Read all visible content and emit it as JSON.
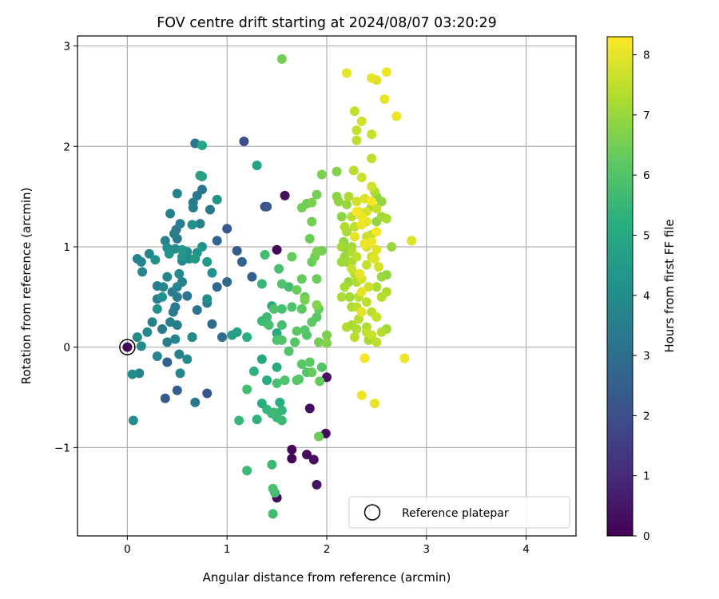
{
  "chart_data": {
    "type": "scatter",
    "title": "FOV centre drift starting at 2024/08/07 03:20:29",
    "xlabel": "Angular distance from reference (arcmin)",
    "ylabel": "Rotation from reference (arcmin)",
    "colorbar_label": "Hours from first FF file",
    "colormap": "viridis",
    "xlim": [
      -0.5,
      4.5
    ],
    "ylim": [
      -1.88,
      3.1
    ],
    "clim": [
      0,
      8.3
    ],
    "xticks": [
      0,
      1,
      2,
      3,
      4
    ],
    "xtick_labels": [
      "0",
      "1",
      "2",
      "3",
      "4"
    ],
    "yticks": [
      -1,
      0,
      1,
      2,
      3
    ],
    "ytick_labels": [
      "−1",
      "0",
      "1",
      "2",
      "3"
    ],
    "cticks": [
      0,
      1,
      2,
      3,
      4,
      5,
      6,
      7,
      8
    ],
    "ctick_labels": [
      "0",
      "1",
      "2",
      "3",
      "4",
      "5",
      "6",
      "7",
      "8"
    ],
    "grid": true,
    "legend": {
      "position": "lower-right",
      "label": "Reference platepar"
    },
    "reference_point": {
      "x": 0,
      "y": 0
    },
    "points": [
      [
        0,
        0,
        0.1
      ],
      [
        1.5,
        0.97,
        0.2
      ],
      [
        1.58,
        1.51,
        0.3
      ],
      [
        1.5,
        -1.5,
        0.2
      ],
      [
        1.65,
        -1.02,
        0.15
      ],
      [
        1.65,
        -1.11,
        0.1
      ],
      [
        1.8,
        -1.07,
        0.2
      ],
      [
        1.87,
        -1.12,
        0.3
      ],
      [
        1.9,
        -1.37,
        0.4
      ],
      [
        1.83,
        -0.61,
        0.3
      ],
      [
        1.99,
        -0.86,
        0.2
      ],
      [
        2.0,
        -0.3,
        0.3
      ],
      [
        1.38,
        1.4,
        1.9
      ],
      [
        1.17,
        2.05,
        2.0
      ],
      [
        0.8,
        -0.46,
        2.2
      ],
      [
        1.0,
        1.18,
        2.3
      ],
      [
        0.38,
        -0.51,
        2.3
      ],
      [
        0.5,
        -0.43,
        2.4
      ],
      [
        0.4,
        -0.15,
        2.5
      ],
      [
        1.1,
        0.96,
        2.4
      ],
      [
        1.15,
        0.85,
        2.6
      ],
      [
        1.25,
        0.7,
        2.5
      ],
      [
        0.9,
        0.6,
        2.8
      ],
      [
        0.85,
        0.23,
        2.9
      ],
      [
        0.95,
        0.1,
        3.0
      ],
      [
        1.4,
        1.4,
        2.2
      ],
      [
        0.9,
        1.06,
        2.7
      ],
      [
        1.0,
        0.65,
        2.8
      ],
      [
        0.68,
        2.03,
        3.2
      ],
      [
        0.68,
        -0.55,
        3.3
      ],
      [
        0.65,
        0.1,
        3.4
      ],
      [
        0.5,
        0.5,
        3.4
      ],
      [
        0.5,
        1.08,
        3.3
      ],
      [
        0.49,
        1.17,
        3.2
      ],
      [
        0.47,
        1.13,
        3.5
      ],
      [
        0.53,
        1.23,
        3.5
      ],
      [
        0.43,
        1.33,
        3.6
      ],
      [
        0.38,
        1.06,
        3.7
      ],
      [
        0.5,
        1.53,
        3.6
      ],
      [
        0.66,
        1.44,
        3.4
      ],
      [
        0.7,
        1.51,
        3.3
      ],
      [
        0.66,
        1.39,
        3.5
      ],
      [
        0.75,
        1.57,
        3.2
      ],
      [
        0.83,
        1.37,
        3.3
      ],
      [
        0.73,
        1.23,
        3.6
      ],
      [
        0.6,
        0.95,
        3.9
      ],
      [
        0.62,
        0.88,
        4.0
      ],
      [
        0.55,
        0.86,
        3.7
      ],
      [
        0.48,
        0.98,
        3.9
      ],
      [
        0.4,
        0.99,
        4.0
      ],
      [
        0.28,
        0.87,
        4.2
      ],
      [
        0.22,
        0.93,
        3.8
      ],
      [
        0.1,
        0.88,
        3.6
      ],
      [
        0.14,
        0.85,
        3.7
      ],
      [
        0.15,
        0.75,
        3.8
      ],
      [
        0.3,
        0.61,
        3.5
      ],
      [
        0.36,
        0.6,
        3.7
      ],
      [
        0.4,
        0.7,
        3.7
      ],
      [
        0.5,
        0.6,
        3.8
      ],
      [
        0.52,
        0.73,
        3.9
      ],
      [
        0.55,
        0.65,
        3.6
      ],
      [
        0.45,
        0.55,
        3.4
      ],
      [
        0.3,
        0.48,
        3.5
      ],
      [
        0.6,
        0.51,
        3.2
      ],
      [
        0.48,
        0.4,
        3.3
      ],
      [
        0.46,
        0.35,
        3.4
      ],
      [
        0.43,
        0.25,
        3.6
      ],
      [
        0.5,
        0.22,
        3.5
      ],
      [
        0.35,
        0.18,
        3.3
      ],
      [
        0.25,
        0.25,
        3.6
      ],
      [
        0.2,
        0.15,
        3.8
      ],
      [
        0.1,
        0.1,
        3.9
      ],
      [
        0.14,
        0.01,
        4.0
      ],
      [
        0.3,
        -0.09,
        3.8
      ],
      [
        0.4,
        0.05,
        3.5
      ],
      [
        0.48,
        0.08,
        3.7
      ],
      [
        0.52,
        -0.07,
        3.6
      ],
      [
        0.6,
        -0.12,
        3.9
      ],
      [
        0.53,
        -0.26,
        3.8
      ],
      [
        0.65,
        0.1,
        3.9
      ],
      [
        0.7,
        0.37,
        3.2
      ],
      [
        0.8,
        0.44,
        3.4
      ],
      [
        0.8,
        0.48,
        4.0
      ],
      [
        0.85,
        0.74,
        4.1
      ],
      [
        0.7,
        0.94,
        4.2
      ],
      [
        0.75,
        1.0,
        4.3
      ],
      [
        0.65,
        1.22,
        4.2
      ],
      [
        0.55,
        0.9,
        4.3
      ],
      [
        0.05,
        -0.27,
        3.9
      ],
      [
        0.12,
        -0.26,
        3.7
      ],
      [
        0.06,
        -0.73,
        4.0
      ],
      [
        0.3,
        0.38,
        4.1
      ],
      [
        0.35,
        0.5,
        4.2
      ],
      [
        0.42,
        0.93,
        4.3
      ],
      [
        0.55,
        0.97,
        4.4
      ],
      [
        0.68,
        0.88,
        4.5
      ],
      [
        0.8,
        0.85,
        4.4
      ],
      [
        0.9,
        1.47,
        4.3
      ],
      [
        0.75,
        1.7,
        4.6
      ],
      [
        0.73,
        1.71,
        4.7
      ],
      [
        0.75,
        2.01,
        4.9
      ],
      [
        1.3,
        1.81,
        4.8
      ],
      [
        1.05,
        0.12,
        4.6
      ],
      [
        1.1,
        0.15,
        4.7
      ],
      [
        1.35,
        -0.12,
        4.9
      ],
      [
        1.4,
        -0.33,
        5.0
      ],
      [
        1.45,
        0.41,
        5.0
      ],
      [
        1.5,
        0.14,
        5.1
      ],
      [
        1.5,
        -0.2,
        5.1
      ],
      [
        1.53,
        -0.55,
        5.2
      ],
      [
        1.2,
        0.1,
        5.2
      ],
      [
        1.27,
        -0.24,
        5.3
      ],
      [
        1.3,
        -0.72,
        5.3
      ],
      [
        1.35,
        -0.56,
        5.1
      ],
      [
        1.4,
        -0.62,
        5.4
      ],
      [
        1.45,
        -0.66,
        5.5
      ],
      [
        1.47,
        -0.65,
        5.6
      ],
      [
        1.55,
        -0.63,
        5.4
      ],
      [
        1.5,
        -0.7,
        5.5
      ],
      [
        1.55,
        -0.73,
        5.6
      ],
      [
        1.12,
        -0.73,
        5.5
      ],
      [
        1.2,
        -0.42,
        5.7
      ],
      [
        1.2,
        -1.23,
        5.6
      ],
      [
        1.45,
        -1.17,
        5.6
      ],
      [
        1.48,
        -1.45,
        5.7
      ],
      [
        1.46,
        -1.41,
        5.8
      ],
      [
        1.46,
        -1.66,
        5.7
      ],
      [
        1.35,
        0.26,
        5.6
      ],
      [
        1.4,
        0.24,
        5.7
      ],
      [
        1.42,
        0.22,
        5.8
      ],
      [
        1.47,
        0.38,
        5.9
      ],
      [
        1.55,
        0.38,
        5.8
      ],
      [
        1.4,
        0.3,
        5.6
      ],
      [
        1.35,
        0.63,
        5.5
      ],
      [
        1.38,
        0.92,
        5.7
      ],
      [
        1.52,
        0.78,
        5.8
      ],
      [
        1.55,
        0.63,
        5.9
      ],
      [
        1.62,
        0.6,
        5.7
      ],
      [
        1.65,
        0.4,
        5.9
      ],
      [
        1.55,
        0.22,
        5.8
      ],
      [
        1.5,
        0.07,
        5.9
      ],
      [
        1.55,
        0.07,
        6.0
      ],
      [
        1.58,
        -0.33,
        5.9
      ],
      [
        1.5,
        -0.36,
        5.8
      ],
      [
        1.62,
        -0.04,
        6.0
      ],
      [
        1.68,
        0.05,
        6.1
      ],
      [
        1.7,
        0.16,
        6.2
      ],
      [
        1.78,
        0.17,
        6.1
      ],
      [
        1.8,
        0.12,
        6.0
      ],
      [
        1.85,
        0.25,
        6.2
      ],
      [
        1.9,
        0.3,
        6.1
      ],
      [
        1.92,
        0.38,
        6.3
      ],
      [
        1.7,
        -0.33,
        6.0
      ],
      [
        1.75,
        -0.17,
        6.1
      ],
      [
        1.83,
        -0.15,
        6.2
      ],
      [
        1.85,
        -0.25,
        6.3
      ],
      [
        1.93,
        -0.34,
        6.3
      ],
      [
        1.95,
        -0.2,
        6.0
      ],
      [
        1.92,
        -0.89,
        6.4
      ],
      [
        1.72,
        -0.32,
        6.1
      ],
      [
        1.8,
        -0.25,
        6.0
      ],
      [
        1.75,
        0.38,
        6.2
      ],
      [
        1.78,
        0.5,
        6.3
      ],
      [
        1.7,
        0.57,
        6.4
      ],
      [
        1.75,
        0.68,
        6.3
      ],
      [
        1.85,
        0.85,
        6.4
      ],
      [
        1.88,
        0.9,
        6.5
      ],
      [
        1.9,
        0.95,
        6.6
      ],
      [
        1.95,
        0.96,
        6.5
      ],
      [
        1.83,
        1.08,
        6.4
      ],
      [
        1.85,
        1.25,
        6.5
      ],
      [
        1.85,
        1.44,
        6.6
      ],
      [
        1.9,
        1.52,
        6.5
      ],
      [
        1.95,
        1.72,
        6.6
      ],
      [
        1.75,
        1.39,
        6.5
      ],
      [
        1.8,
        1.43,
        6.4
      ],
      [
        2.0,
        0.04,
        6.7
      ],
      [
        1.92,
        0.05,
        6.5
      ],
      [
        2.0,
        0.12,
        6.6
      ],
      [
        1.9,
        0.68,
        6.4
      ],
      [
        1.65,
        0.9,
        6.3
      ],
      [
        1.55,
        2.87,
        6.5
      ],
      [
        1.78,
        0.47,
        6.6
      ],
      [
        1.9,
        0.42,
        6.7
      ],
      [
        2.1,
        1.5,
        6.8
      ],
      [
        2.1,
        1.75,
        6.7
      ],
      [
        2.15,
        1.3,
        6.8
      ],
      [
        2.17,
        1.05,
        6.9
      ],
      [
        2.2,
        0.97,
        6.8
      ],
      [
        2.18,
        0.9,
        7.0
      ],
      [
        2.15,
        0.85,
        7.1
      ],
      [
        2.2,
        0.85,
        7.0
      ],
      [
        2.25,
        1.0,
        7.1
      ],
      [
        2.22,
        0.65,
        7.0
      ],
      [
        2.23,
        0.5,
        7.1
      ],
      [
        2.15,
        0.5,
        7.2
      ],
      [
        2.2,
        0.2,
        7.3
      ],
      [
        2.25,
        0.22,
        7.2
      ],
      [
        2.28,
        0.1,
        7.4
      ],
      [
        2.3,
        0.18,
        7.3
      ],
      [
        2.3,
        0.4,
        7.5
      ],
      [
        2.32,
        0.5,
        7.4
      ],
      [
        2.3,
        0.65,
        7.3
      ],
      [
        2.28,
        0.73,
        7.4
      ],
      [
        2.3,
        2.06,
        7.5
      ],
      [
        2.3,
        2.16,
        7.6
      ],
      [
        2.28,
        2.35,
        7.5
      ],
      [
        2.35,
        2.25,
        7.7
      ],
      [
        2.35,
        1.69,
        7.6
      ],
      [
        2.3,
        1.45,
        7.7
      ],
      [
        2.32,
        1.35,
        7.8
      ],
      [
        2.28,
        1.2,
        7.5
      ],
      [
        2.4,
        1.1,
        7.6
      ],
      [
        2.45,
        1.12,
        7.5
      ],
      [
        2.4,
        1.0,
        7.8
      ],
      [
        2.45,
        0.9,
        7.7
      ],
      [
        2.4,
        0.82,
        7.6
      ],
      [
        2.42,
        0.6,
        7.7
      ],
      [
        2.4,
        0.45,
        7.5
      ],
      [
        2.45,
        0.35,
        7.4
      ],
      [
        2.4,
        0.2,
        7.3
      ],
      [
        2.45,
        0.12,
        7.6
      ],
      [
        2.5,
        0.05,
        7.5
      ],
      [
        2.55,
        0.15,
        7.4
      ],
      [
        2.42,
        0.07,
        7.2
      ],
      [
        2.6,
        0.18,
        7.1
      ],
      [
        2.5,
        0.6,
        7.2
      ],
      [
        2.55,
        0.7,
        7.0
      ],
      [
        2.6,
        0.72,
        6.9
      ],
      [
        2.65,
        1.0,
        7.0
      ],
      [
        2.6,
        1.28,
        7.2
      ],
      [
        2.5,
        1.5,
        6.8
      ],
      [
        2.55,
        1.45,
        6.9
      ],
      [
        2.45,
        1.4,
        7.0
      ],
      [
        2.5,
        1.25,
        6.9
      ],
      [
        2.55,
        1.3,
        7.1
      ],
      [
        2.48,
        1.55,
        7.3
      ],
      [
        2.45,
        1.88,
        7.5
      ],
      [
        2.45,
        2.12,
        7.6
      ],
      [
        2.5,
        2.66,
        7.9
      ],
      [
        2.45,
        2.68,
        8.0
      ],
      [
        2.6,
        2.74,
        8.1
      ],
      [
        2.2,
        2.73,
        8.0
      ],
      [
        2.58,
        2.47,
        8.0
      ],
      [
        2.7,
        2.3,
        8.1
      ],
      [
        2.85,
        1.06,
        7.9
      ],
      [
        2.78,
        -0.11,
        8.1
      ],
      [
        2.35,
        -0.48,
        8.1
      ],
      [
        2.48,
        -0.56,
        8.0
      ],
      [
        2.38,
        -0.11,
        8.2
      ],
      [
        2.35,
        0.35,
        8.0
      ],
      [
        2.33,
        0.73,
        8.0
      ],
      [
        2.35,
        0.55,
        8.0
      ],
      [
        2.38,
        1.03,
        8.1
      ],
      [
        2.45,
        1.05,
        8.1
      ],
      [
        2.5,
        1.15,
        8.2
      ],
      [
        2.45,
        1.45,
        8.2
      ],
      [
        2.35,
        1.3,
        8.1
      ],
      [
        2.4,
        1.25,
        8.0
      ],
      [
        2.3,
        1.35,
        8.2
      ],
      [
        2.35,
        1.22,
        8.1
      ],
      [
        2.28,
        1.1,
        8.0
      ],
      [
        2.5,
        0.97,
        7.9
      ],
      [
        2.52,
        0.8,
        7.8
      ],
      [
        2.48,
        0.88,
        7.9
      ],
      [
        2.25,
        0.78,
        7.6
      ],
      [
        2.35,
        0.68,
        7.8
      ],
      [
        2.27,
        1.76,
        7.4
      ],
      [
        2.22,
        1.5,
        7.3
      ],
      [
        2.12,
        1.45,
        6.9
      ],
      [
        2.2,
        1.42,
        7.0
      ],
      [
        2.18,
        1.2,
        7.3
      ],
      [
        2.25,
        1.3,
        7.4
      ],
      [
        2.2,
        1.15,
        7.2
      ],
      [
        2.15,
        1.0,
        7.1
      ],
      [
        2.25,
        0.95,
        7.3
      ],
      [
        2.25,
        0.85,
        7.2
      ],
      [
        2.3,
        0.9,
        7.5
      ],
      [
        2.18,
        0.6,
        7.2
      ],
      [
        2.25,
        0.4,
        7.2
      ],
      [
        2.32,
        0.28,
        7.4
      ],
      [
        2.4,
        0.15,
        7.5
      ],
      [
        2.5,
        0.3,
        7.6
      ],
      [
        2.55,
        0.5,
        7.4
      ],
      [
        2.6,
        0.55,
        7.3
      ],
      [
        2.5,
        1.38,
        7.6
      ],
      [
        2.4,
        1.35,
        7.8
      ],
      [
        2.38,
        1.48,
        7.9
      ],
      [
        2.45,
        1.6,
        7.7
      ]
    ]
  }
}
